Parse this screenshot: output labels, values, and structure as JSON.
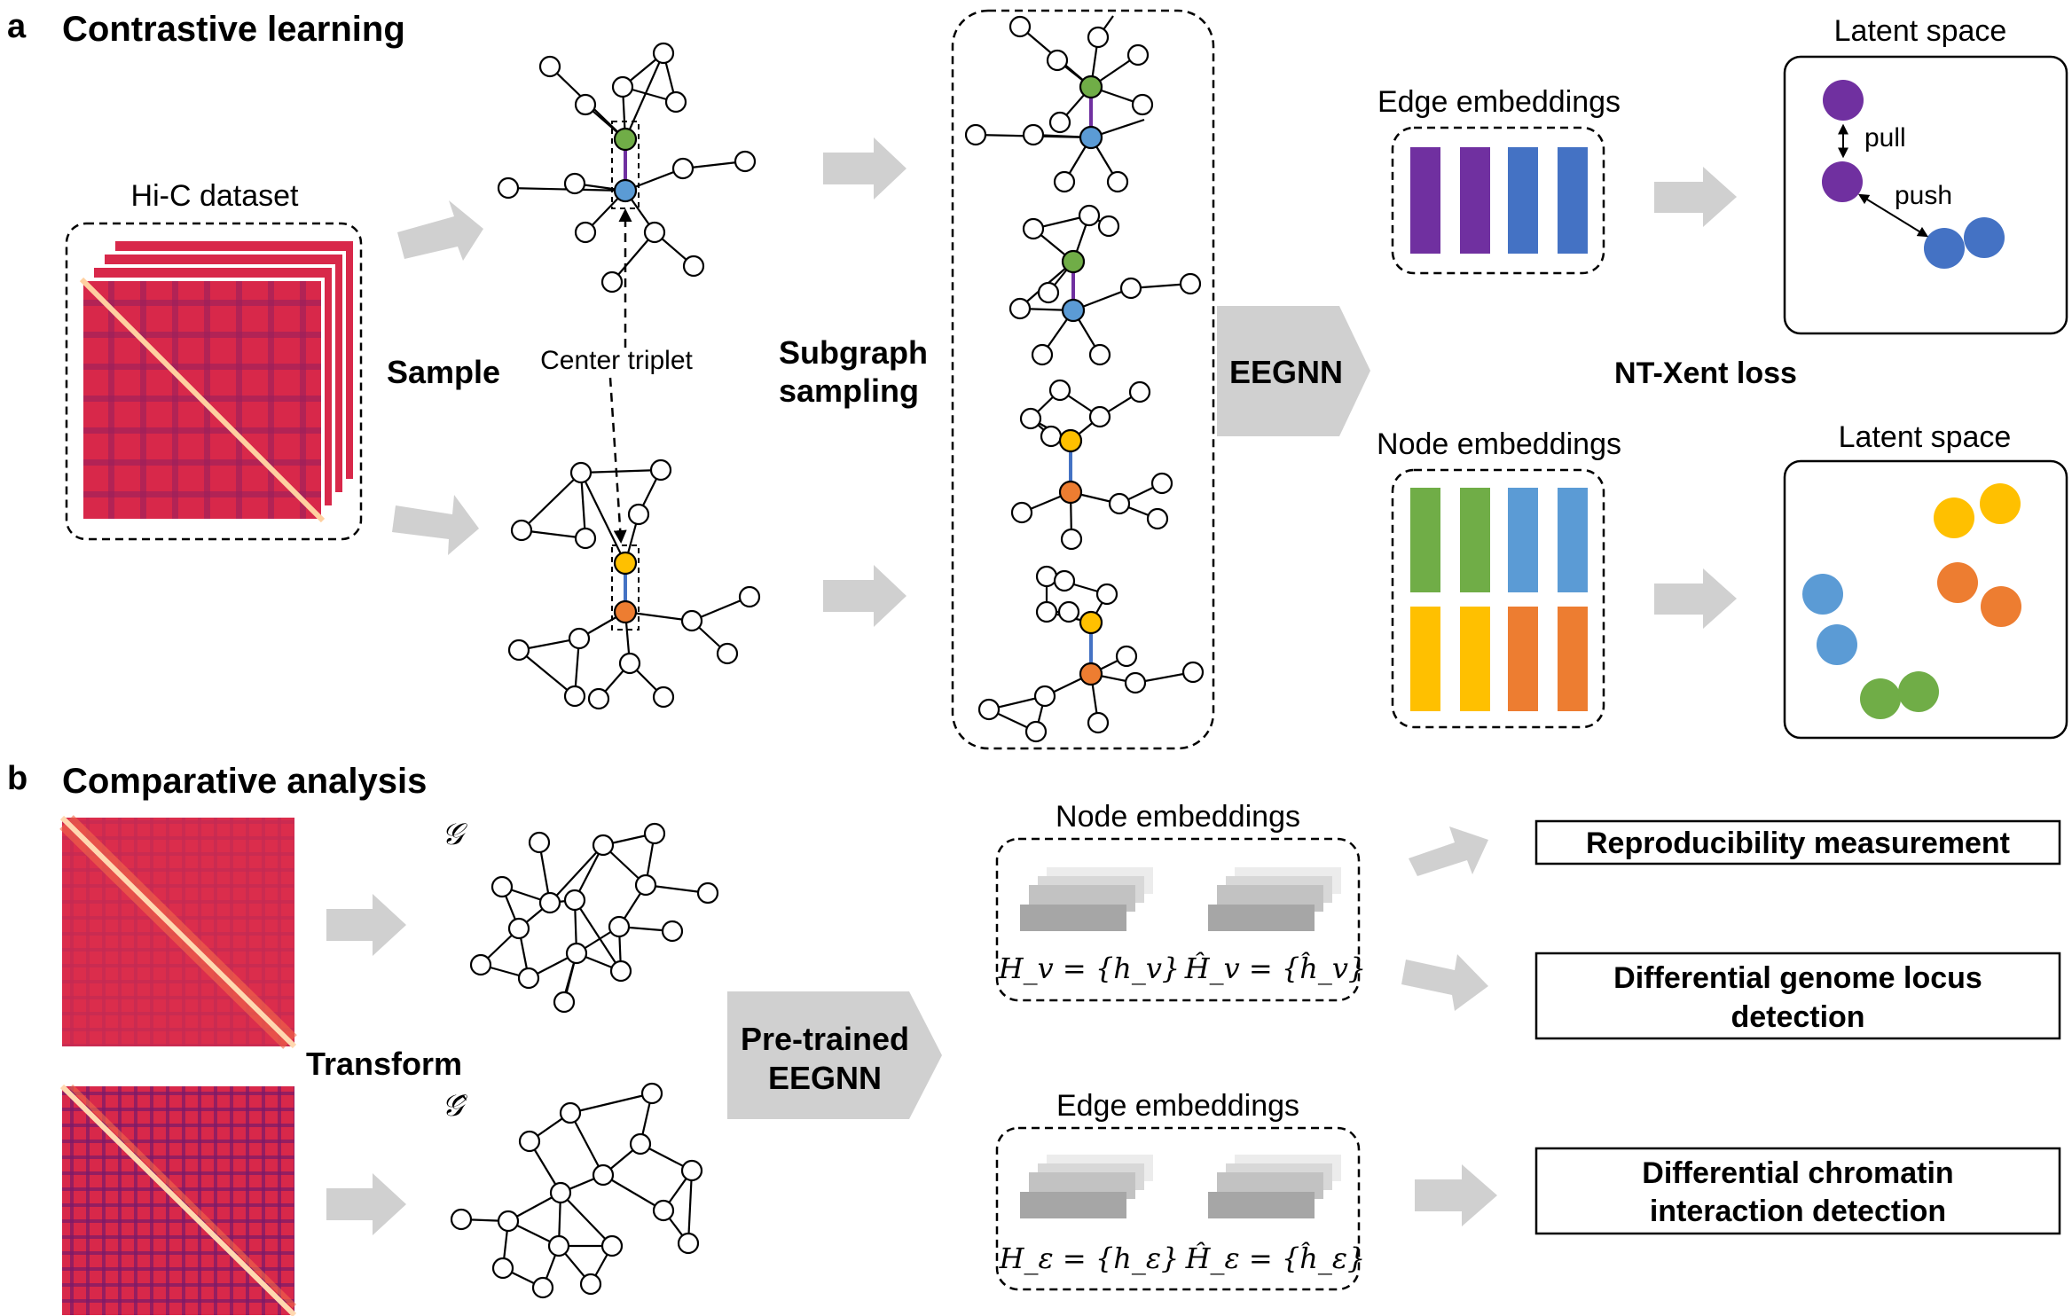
{
  "panel_a": {
    "letter": "a",
    "title": "Contrastive learning",
    "hic_label": "Hi-C dataset",
    "sample_label": "Sample",
    "center_triplet_label": "Center triplet",
    "subgraph_line1": "Subgraph",
    "subgraph_line2": "sampling",
    "eegnn_label": "EEGNN",
    "edge_emb_label": "Edge embeddings",
    "node_emb_label": "Node embeddings",
    "latent_top_label": "Latent space",
    "latent_bottom_label": "Latent space",
    "pull_label": "pull",
    "push_label": "push",
    "loss_label": "NT-Xent loss"
  },
  "panel_b": {
    "letter": "b",
    "title": "Comparative analysis",
    "transform_label": "Transform",
    "graph_symbol": "𝒢",
    "graph_hat_symbol": "𝒢̂",
    "pretrained_line1": "Pre-trained",
    "pretrained_line2": "EEGNN",
    "node_emb_label": "Node embeddings",
    "edge_emb_label": "Edge embeddings",
    "hv_formula": "H_v = {h_v}",
    "hv_hat_formula": "Ĥ_v = {ĥ_v}",
    "he_formula": "H_ε = {h_ε}",
    "he_hat_formula": "Ĥ_ε = {ĥ_ε}",
    "out_reproducibility": "Reproducibility measurement",
    "out_locus_line1": "Differential genome locus",
    "out_locus_line2": "detection",
    "out_interaction_line1": "Differential chromatin",
    "out_interaction_line2": "interaction detection"
  },
  "colors": {
    "purple": "#7030a0",
    "blue": "#4472c4",
    "green": "#70ad47",
    "light_blue": "#5b9bd5",
    "yellow": "#ffc000",
    "orange": "#ed7d31",
    "arrow_gray": "#d0d0d0",
    "heatmap_red": "#e0304a",
    "heatmap_dark": "#8a1a6a"
  }
}
